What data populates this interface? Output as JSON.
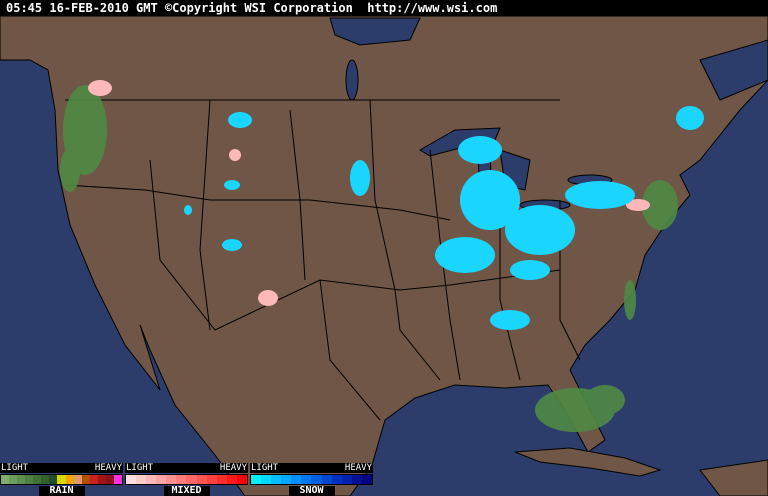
{
  "header": {
    "timestamp": "05:45 16-FEB-2010 GMT",
    "copyright": "©Copyright WSI Corporation",
    "url": "http://www.wsi.com"
  },
  "colors": {
    "ocean": "#2c3d6c",
    "land": "#6f5646",
    "borders": "#000000",
    "lakes": "#2c3d6c"
  },
  "legends": [
    {
      "name": "RAIN",
      "light": "LIGHT",
      "heavy": "HEAVY",
      "colors": [
        "#7fae6a",
        "#6c9e5b",
        "#5d8f4e",
        "#4e8043",
        "#3f7038",
        "#31602d",
        "#234f22",
        "#d8d800",
        "#f2a400",
        "#e09a6a",
        "#b35000",
        "#cc2020",
        "#a01414",
        "#8a1020",
        "#ff30e0"
      ]
    },
    {
      "name": "MIXED",
      "light": "LIGHT",
      "heavy": "HEAVY",
      "colors": [
        "#ffe0e0",
        "#ffcccc",
        "#ffb8b8",
        "#ffa4a4",
        "#ff9090",
        "#ff7c7c",
        "#ff6868",
        "#ff5454",
        "#ff4040",
        "#ff2c2c",
        "#ff1818",
        "#ff0000"
      ]
    },
    {
      "name": "SNOW",
      "light": "LIGHT",
      "heavy": "HEAVY",
      "colors": [
        "#00f0ff",
        "#00d8ff",
        "#00c0ff",
        "#00a8ff",
        "#0090ff",
        "#0078f0",
        "#0060e0",
        "#0048d0",
        "#0030c0",
        "#0020b0",
        "#001090",
        "#000080"
      ]
    }
  ]
}
